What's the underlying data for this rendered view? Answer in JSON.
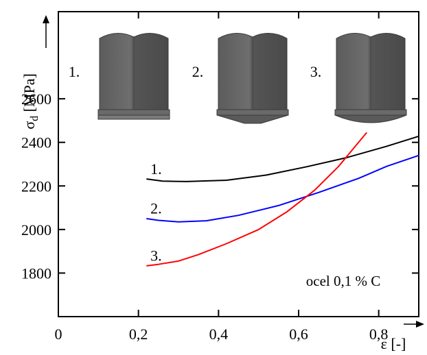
{
  "chart_data": {
    "type": "line",
    "xlabel": "ε [-]",
    "ylabel": "σd [MPa]",
    "ylabel_main": "σ",
    "ylabel_sub": "d",
    "ylabel_unit": " [MPa]",
    "xlim": [
      0,
      0.9
    ],
    "ylim": [
      1600,
      3000
    ],
    "x_ticks": [
      0,
      0.2,
      0.4,
      0.6,
      0.8
    ],
    "x_tick_labels": [
      "0",
      "0,2",
      "0,4",
      "0,6",
      "0,8"
    ],
    "y_ticks": [
      1800,
      2000,
      2200,
      2400,
      2600
    ],
    "y_tick_labels": [
      "1800",
      "2000",
      "2200",
      "2400",
      "2600"
    ],
    "grid": false,
    "annotation": "ocel 0,1 % C",
    "insets": [
      {
        "label": "1.",
        "tip": "flat"
      },
      {
        "label": "2.",
        "tip": "cone"
      },
      {
        "label": "3.",
        "tip": "dome"
      }
    ],
    "series": [
      {
        "name": "1.",
        "color": "#000000",
        "x": [
          0.22,
          0.26,
          0.32,
          0.42,
          0.52,
          0.62,
          0.72,
          0.82,
          0.9
        ],
        "y": [
          2232,
          2222,
          2220,
          2226,
          2250,
          2288,
          2330,
          2382,
          2428
        ]
      },
      {
        "name": "2.",
        "color": "#0000ff",
        "x": [
          0.22,
          0.25,
          0.3,
          0.37,
          0.45,
          0.55,
          0.65,
          0.75,
          0.82,
          0.9
        ],
        "y": [
          2050,
          2042,
          2035,
          2040,
          2065,
          2110,
          2170,
          2235,
          2290,
          2340
        ]
      },
      {
        "name": "3.",
        "color": "#ff0000",
        "x": [
          0.22,
          0.25,
          0.3,
          0.35,
          0.42,
          0.5,
          0.57,
          0.64,
          0.7,
          0.77
        ],
        "y": [
          1833,
          1840,
          1855,
          1885,
          1935,
          2000,
          2080,
          2180,
          2290,
          2445
        ]
      }
    ]
  }
}
